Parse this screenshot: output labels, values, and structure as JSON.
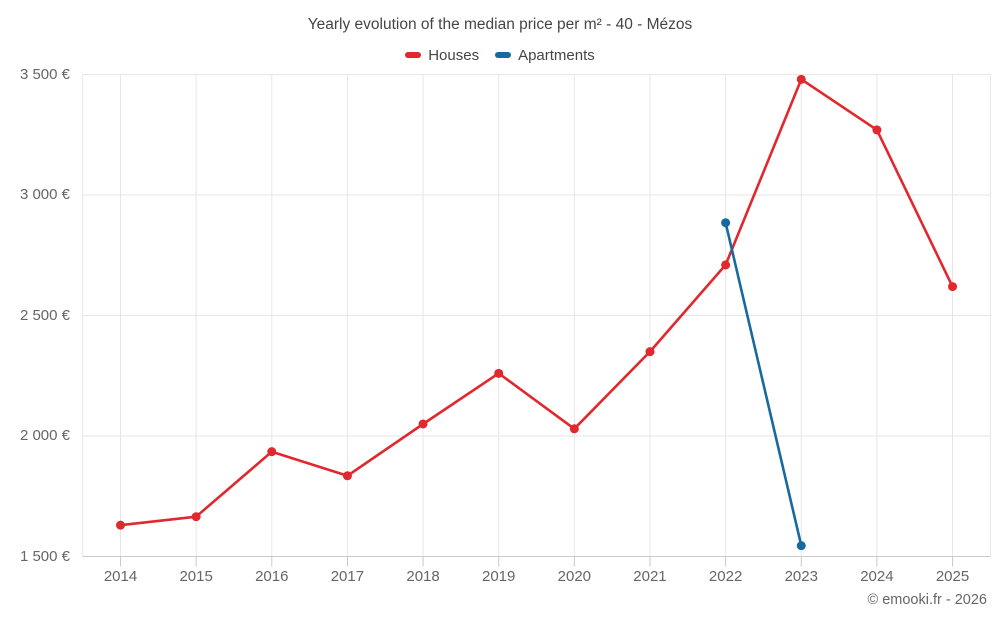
{
  "title": "Yearly evolution of the median price per m² - 40 - Mézos",
  "legend": {
    "items": [
      {
        "label": "Houses",
        "color": "#e0282e"
      },
      {
        "label": "Apartments",
        "color": "#17699e"
      }
    ]
  },
  "footer": {
    "credit": "© emooki.fr - 2026"
  },
  "chart_data": {
    "type": "line",
    "title": "Yearly evolution of the median price per m² - 40 - Mézos",
    "xlabel": "",
    "ylabel": "",
    "categories": [
      "2014",
      "2015",
      "2016",
      "2017",
      "2018",
      "2019",
      "2020",
      "2021",
      "2022",
      "2023",
      "2024",
      "2025"
    ],
    "series": [
      {
        "name": "Houses",
        "color": "#e0282e",
        "values": [
          1630,
          1665,
          1935,
          1835,
          2050,
          2260,
          2030,
          2350,
          2710,
          3480,
          3270,
          2620
        ]
      },
      {
        "name": "Apartments",
        "color": "#17699e",
        "values": [
          null,
          null,
          null,
          null,
          null,
          null,
          null,
          null,
          2885,
          1545,
          null,
          null
        ]
      }
    ],
    "ylim": [
      1500,
      3500
    ],
    "yticks": [
      {
        "value": 1500,
        "label": "1 500 €"
      },
      {
        "value": 2000,
        "label": "2 000 €"
      },
      {
        "value": 2500,
        "label": "2 500 €"
      },
      {
        "value": 3000,
        "label": "3 000 €"
      },
      {
        "value": 3500,
        "label": "3 500 €"
      }
    ],
    "grid": true,
    "legend_position": "top",
    "currency": "€"
  }
}
